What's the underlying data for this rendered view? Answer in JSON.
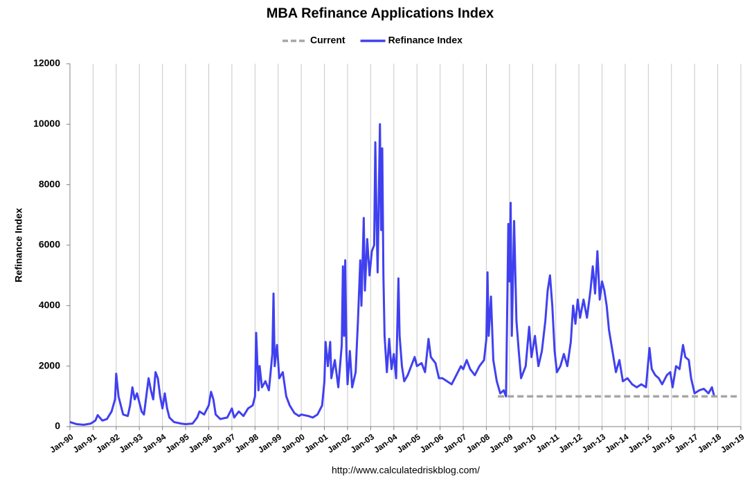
{
  "chart_data": {
    "type": "line",
    "title": "MBA Refinance Applications Index",
    "ylabel": "Refinance Index",
    "source": "http://www.calculatedriskblog.com/",
    "xlim": [
      1990,
      2019
    ],
    "xticks": [
      {
        "value": 1990,
        "label": "Jan-90"
      },
      {
        "value": 1991,
        "label": "Jan-91"
      },
      {
        "value": 1992,
        "label": "Jan-92"
      },
      {
        "value": 1993,
        "label": "Jan-93"
      },
      {
        "value": 1994,
        "label": "Jan-94"
      },
      {
        "value": 1995,
        "label": "Jan-95"
      },
      {
        "value": 1996,
        "label": "Jan-96"
      },
      {
        "value": 1997,
        "label": "Jan-97"
      },
      {
        "value": 1998,
        "label": "Jan-98"
      },
      {
        "value": 1999,
        "label": "Jan-99"
      },
      {
        "value": 2000,
        "label": "Jan-00"
      },
      {
        "value": 2001,
        "label": "Jan-01"
      },
      {
        "value": 2002,
        "label": "Jan-02"
      },
      {
        "value": 2003,
        "label": "Jan-03"
      },
      {
        "value": 2004,
        "label": "Jan-04"
      },
      {
        "value": 2005,
        "label": "Jan-05"
      },
      {
        "value": 2006,
        "label": "Jan-06"
      },
      {
        "value": 2007,
        "label": "Jan-07"
      },
      {
        "value": 2008,
        "label": "Jan-08"
      },
      {
        "value": 2009,
        "label": "Jan-09"
      },
      {
        "value": 2010,
        "label": "Jan-10"
      },
      {
        "value": 2011,
        "label": "Jan-11"
      },
      {
        "value": 2012,
        "label": "Jan-12"
      },
      {
        "value": 2013,
        "label": "Jan-13"
      },
      {
        "value": 2014,
        "label": "Jan-14"
      },
      {
        "value": 2015,
        "label": "Jan-15"
      },
      {
        "value": 2016,
        "label": "Jan-16"
      },
      {
        "value": 2017,
        "label": "Jan-17"
      },
      {
        "value": 2018,
        "label": "Jan-18"
      },
      {
        "value": 2019,
        "label": "Jan-19"
      }
    ],
    "ylim": [
      0,
      12000
    ],
    "yticks": [
      0,
      2000,
      4000,
      6000,
      8000,
      10000,
      12000
    ],
    "grid": "x",
    "series": [
      {
        "name": "Current",
        "color": "#a6a6a6",
        "dash": true,
        "x": [
          2008.5,
          2018.85
        ],
        "values": [
          1000,
          1000
        ]
      },
      {
        "name": "Refinance Index",
        "color": "#4040f0",
        "dash": false,
        "x": [
          1990.0,
          1990.3,
          1990.6,
          1990.9,
          1991.1,
          1991.2,
          1991.4,
          1991.6,
          1991.8,
          1991.95,
          1992.0,
          1992.1,
          1992.3,
          1992.5,
          1992.6,
          1992.7,
          1992.8,
          1992.9,
          1993.1,
          1993.2,
          1993.3,
          1993.4,
          1993.5,
          1993.6,
          1993.7,
          1993.8,
          1993.9,
          1994.0,
          1994.1,
          1994.2,
          1994.3,
          1994.5,
          1994.8,
          1995.0,
          1995.3,
          1995.5,
          1995.6,
          1995.8,
          1996.0,
          1996.1,
          1996.2,
          1996.3,
          1996.5,
          1996.8,
          1997.0,
          1997.1,
          1997.3,
          1997.5,
          1997.7,
          1997.9,
          1998.0,
          1998.05,
          1998.15,
          1998.2,
          1998.3,
          1998.45,
          1998.6,
          1998.75,
          1998.8,
          1998.85,
          1998.95,
          1999.05,
          1999.2,
          1999.35,
          1999.5,
          1999.7,
          1999.9,
          2000.0,
          2000.3,
          2000.5,
          2000.7,
          2000.9,
          2001.0,
          2001.05,
          2001.15,
          2001.25,
          2001.3,
          2001.45,
          2001.6,
          2001.75,
          2001.8,
          2001.85,
          2001.9,
          2001.95,
          2002.0,
          2002.1,
          2002.2,
          2002.35,
          2002.45,
          2002.55,
          2002.6,
          2002.7,
          2002.75,
          2002.85,
          2002.95,
          2003.05,
          2003.15,
          2003.2,
          2003.25,
          2003.3,
          2003.4,
          2003.45,
          2003.5,
          2003.55,
          2003.6,
          2003.7,
          2003.8,
          2003.9,
          2004.0,
          2004.1,
          2004.2,
          2004.25,
          2004.35,
          2004.45,
          2004.6,
          2004.75,
          2004.9,
          2005.0,
          2005.2,
          2005.35,
          2005.5,
          2005.6,
          2005.8,
          2005.95,
          2006.1,
          2006.3,
          2006.5,
          2006.7,
          2006.9,
          2007.0,
          2007.15,
          2007.3,
          2007.5,
          2007.7,
          2007.9,
          2008.0,
          2008.05,
          2008.1,
          2008.2,
          2008.3,
          2008.45,
          2008.6,
          2008.75,
          2008.85,
          2008.9,
          2008.95,
          2009.0,
          2009.05,
          2009.1,
          2009.2,
          2009.3,
          2009.4,
          2009.5,
          2009.7,
          2009.85,
          2009.95,
          2010.1,
          2010.25,
          2010.4,
          2010.55,
          2010.65,
          2010.75,
          2010.85,
          2010.95,
          2011.05,
          2011.2,
          2011.35,
          2011.5,
          2011.65,
          2011.75,
          2011.85,
          2011.95,
          2012.05,
          2012.2,
          2012.35,
          2012.5,
          2012.6,
          2012.7,
          2012.8,
          2012.9,
          2013.0,
          2013.1,
          2013.2,
          2013.3,
          2013.45,
          2013.6,
          2013.75,
          2013.9,
          2014.1,
          2014.3,
          2014.5,
          2014.7,
          2014.9,
          2015.05,
          2015.15,
          2015.3,
          2015.45,
          2015.6,
          2015.8,
          2015.95,
          2016.05,
          2016.2,
          2016.35,
          2016.5,
          2016.6,
          2016.75,
          2016.85,
          2017.0,
          2017.2,
          2017.4,
          2017.6,
          2017.75,
          2017.85
        ],
        "values": [
          150,
          80,
          60,
          100,
          200,
          380,
          200,
          250,
          500,
          900,
          1750,
          1000,
          400,
          350,
          700,
          1300,
          900,
          1100,
          500,
          400,
          1000,
          1600,
          1200,
          900,
          1800,
          1600,
          1000,
          600,
          1100,
          600,
          300,
          150,
          100,
          80,
          100,
          300,
          500,
          400,
          700,
          1150,
          900,
          400,
          250,
          300,
          600,
          300,
          500,
          350,
          600,
          700,
          1000,
          3100,
          1200,
          2000,
          1300,
          1500,
          1200,
          2400,
          4400,
          2000,
          2700,
          1600,
          1800,
          1000,
          700,
          450,
          350,
          400,
          350,
          300,
          400,
          700,
          1500,
          2800,
          2000,
          2800,
          1600,
          2200,
          1300,
          2700,
          5300,
          3000,
          5500,
          2500,
          1400,
          2500,
          1300,
          1800,
          3500,
          5500,
          4000,
          6900,
          4500,
          6200,
          5000,
          5800,
          6000,
          9400,
          7000,
          5100,
          10000,
          6500,
          9200,
          5000,
          3000,
          1800,
          2900,
          1900,
          2400,
          1600,
          4900,
          3000,
          2000,
          1500,
          1700,
          2000,
          2300,
          2000,
          2100,
          1800,
          2900,
          2300,
          2100,
          1600,
          1600,
          1500,
          1400,
          1700,
          2000,
          1900,
          2200,
          1900,
          1700,
          2000,
          2200,
          2900,
          5100,
          3000,
          4300,
          2200,
          1500,
          1100,
          1200,
          1000,
          3800,
          6700,
          4800,
          7400,
          3000,
          6800,
          3500,
          2500,
          1600,
          2000,
          3300,
          2300,
          3000,
          2000,
          2500,
          3500,
          4500,
          5000,
          4000,
          2500,
          1800,
          2000,
          2400,
          2000,
          2800,
          4000,
          3400,
          4200,
          3600,
          4200,
          3600,
          4500,
          5300,
          4400,
          5800,
          4200,
          4800,
          4500,
          4000,
          3200,
          2500,
          1800,
          2200,
          1500,
          1600,
          1400,
          1300,
          1400,
          1300,
          2600,
          1900,
          1700,
          1600,
          1400,
          1700,
          1800,
          1300,
          2000,
          1900,
          2700,
          2300,
          2200,
          1600,
          1100,
          1200,
          1250,
          1100,
          1300,
          1000
        ]
      }
    ]
  }
}
